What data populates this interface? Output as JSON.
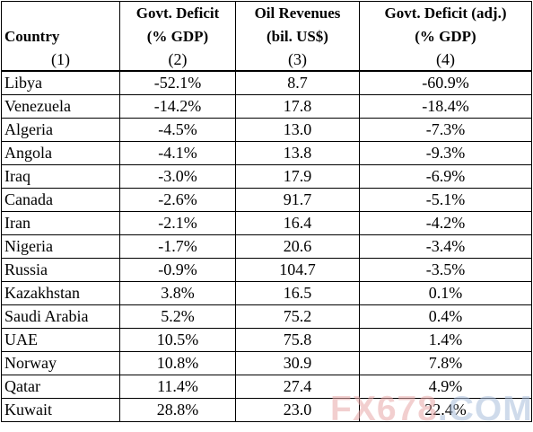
{
  "chart_data": {
    "type": "table",
    "headers": {
      "row1": [
        "",
        "Govt. Deficit",
        "Oil Revenues",
        "Govt. Deficit (adj.)"
      ],
      "row2": [
        "Country",
        "(% GDP)",
        "(bil. US$)",
        "(% GDP)"
      ],
      "row3": [
        "(1)",
        "(2)",
        "(3)",
        "(4)"
      ]
    },
    "rows": [
      [
        "Libya",
        "-52.1%",
        "8.7",
        "-60.9%"
      ],
      [
        "Venezuela",
        "-14.2%",
        "17.8",
        "-18.4%"
      ],
      [
        "Algeria",
        "-4.5%",
        "13.0",
        "-7.3%"
      ],
      [
        "Angola",
        "-4.1%",
        "13.8",
        "-9.3%"
      ],
      [
        "Iraq",
        "-3.0%",
        "17.9",
        "-6.9%"
      ],
      [
        "Canada",
        "-2.6%",
        "91.7",
        "-5.1%"
      ],
      [
        "Iran",
        "-2.1%",
        "16.4",
        "-4.2%"
      ],
      [
        "Nigeria",
        "-1.7%",
        "20.6",
        "-3.4%"
      ],
      [
        "Russia",
        "-0.9%",
        "104.7",
        "-3.5%"
      ],
      [
        "Kazakhstan",
        "3.8%",
        "16.5",
        "0.1%"
      ],
      [
        "Saudi Arabia",
        "5.2%",
        "75.2",
        "0.4%"
      ],
      [
        "UAE",
        "10.5%",
        "75.8",
        "1.4%"
      ],
      [
        "Norway",
        "10.8%",
        "30.9",
        "7.8%"
      ],
      [
        "Qatar",
        "11.4%",
        "27.4",
        "4.9%"
      ],
      [
        "Kuwait",
        "28.8%",
        "23.0",
        "22.4%"
      ]
    ]
  },
  "watermark": {
    "part1": "FX678",
    "part2": ".COM"
  }
}
